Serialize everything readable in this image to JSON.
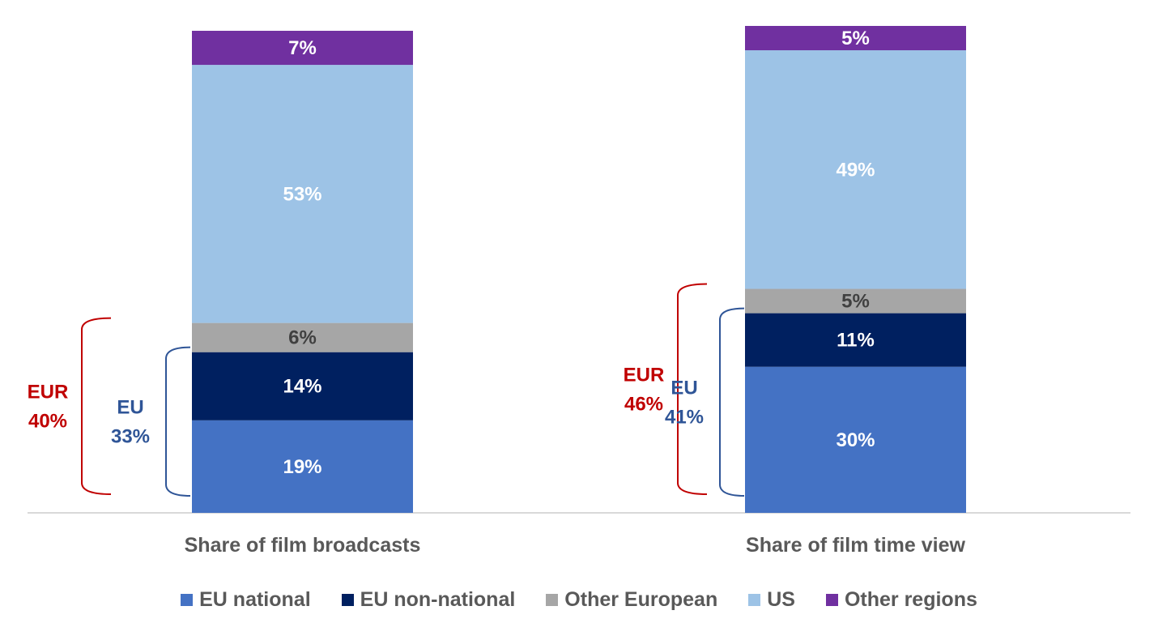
{
  "chart_data": {
    "type": "bar",
    "stacked": true,
    "categories": [
      "Share of film broadcasts",
      "Share of film time view"
    ],
    "series": [
      {
        "name": "EU national",
        "values": [
          19,
          30
        ],
        "labels": [
          "19%",
          "30%"
        ],
        "color": "#4472c4",
        "label_color": "#ffffff"
      },
      {
        "name": "EU non-national",
        "values": [
          14,
          11
        ],
        "labels": [
          "14%",
          "11%"
        ],
        "color": "#002060",
        "label_color": "#ffffff"
      },
      {
        "name": "Other European",
        "values": [
          6,
          5
        ],
        "labels": [
          "6%",
          "5%"
        ],
        "color": "#a6a6a6",
        "label_color": "#404040"
      },
      {
        "name": "US",
        "values": [
          53,
          49
        ],
        "labels": [
          "53%",
          "49%"
        ],
        "color": "#9dc3e6",
        "label_color": "#ffffff"
      },
      {
        "name": "Other regions",
        "values": [
          7,
          5
        ],
        "labels": [
          "7%",
          "5%"
        ],
        "color": "#7030a0",
        "label_color": "#ffffff"
      }
    ],
    "ylim": [
      0,
      100
    ],
    "grid": false,
    "legend_position": "bottom",
    "annotations": [
      {
        "bar": 0,
        "kind": "EUR",
        "name": "EUR",
        "value": "40%",
        "color": "#c00000",
        "span_series": [
          0,
          2
        ]
      },
      {
        "bar": 0,
        "kind": "EU",
        "name": "EU",
        "value": "33%",
        "color": "#2f5597",
        "span_series": [
          0,
          1
        ]
      },
      {
        "bar": 1,
        "kind": "EUR",
        "name": "EUR",
        "value": "46%",
        "color": "#c00000",
        "span_series": [
          0,
          2
        ]
      },
      {
        "bar": 1,
        "kind": "EU",
        "name": "EU",
        "value": "41%",
        "color": "#2f5597",
        "span_series": [
          0,
          1
        ]
      }
    ]
  }
}
